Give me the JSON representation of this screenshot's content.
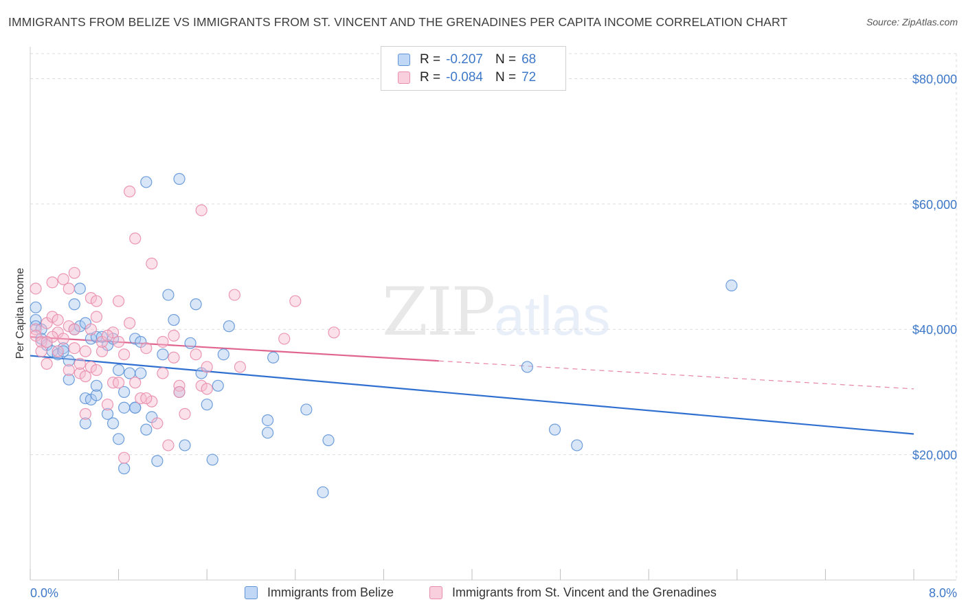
{
  "title": "IMMIGRANTS FROM BELIZE VS IMMIGRANTS FROM ST. VINCENT AND THE GRENADINES PER CAPITA INCOME CORRELATION CHART",
  "source": "Source: ZipAtlas.com",
  "watermark": {
    "zip": "ZIP",
    "atlas": "atlas"
  },
  "legend": {
    "r_label": "R =",
    "n_label": "N =",
    "rows": [
      {
        "r": "-0.207",
        "n": "68"
      },
      {
        "r": "-0.084",
        "n": "72"
      }
    ]
  },
  "colors": {
    "blue_fill": "#a9c8f0",
    "blue_stroke": "#5f93d6",
    "blue_line": "#2f6fd0",
    "pink_fill": "#f6bcd0",
    "pink_stroke": "#e98cab",
    "pink_line": "#e0648f",
    "axis_text": "#3e78c8"
  },
  "chart_data": {
    "type": "scatter",
    "title": "IMMIGRANTS FROM BELIZE VS IMMIGRANTS FROM ST. VINCENT AND THE GRENADINES PER CAPITA INCOME CORRELATION CHART",
    "xlabel": "",
    "ylabel": "Per Capita Income",
    "xlim": [
      0,
      8
    ],
    "ylim": [
      0,
      84000
    ],
    "x_tick_labels": [
      "0.0%",
      "8.0%"
    ],
    "y_ticks": [
      20000,
      40000,
      60000,
      80000
    ],
    "y_tick_labels": [
      "$20,000",
      "$40,000",
      "$60,000",
      "$80,000"
    ],
    "grid": true,
    "series": [
      {
        "name": "Immigrants from Belize",
        "r": -0.207,
        "n": 68,
        "trend": {
          "x0": 0.0,
          "y0": 35800,
          "x1": 8.0,
          "y1": 23300,
          "dashed_from": null
        },
        "points": [
          [
            0.05,
            43500
          ],
          [
            0.05,
            41500
          ],
          [
            0.05,
            40500
          ],
          [
            0.1,
            40000
          ],
          [
            0.1,
            38500
          ],
          [
            0.15,
            37500
          ],
          [
            0.2,
            36500
          ],
          [
            0.25,
            36000
          ],
          [
            0.3,
            37000
          ],
          [
            0.35,
            35000
          ],
          [
            0.35,
            32000
          ],
          [
            0.4,
            40000
          ],
          [
            0.45,
            40500
          ],
          [
            0.5,
            41000
          ],
          [
            0.4,
            44000
          ],
          [
            0.45,
            46500
          ],
          [
            0.55,
            38500
          ],
          [
            0.6,
            38800
          ],
          [
            0.5,
            29000
          ],
          [
            0.55,
            28800
          ],
          [
            0.6,
            29500
          ],
          [
            0.5,
            25000
          ],
          [
            0.6,
            31000
          ],
          [
            0.7,
            37500
          ],
          [
            0.75,
            38500
          ],
          [
            0.8,
            33500
          ],
          [
            0.85,
            30000
          ],
          [
            0.7,
            26500
          ],
          [
            0.75,
            25000
          ],
          [
            0.85,
            27500
          ],
          [
            0.95,
            27500
          ],
          [
            0.9,
            33000
          ],
          [
            1.0,
            33000
          ],
          [
            1.05,
            24000
          ],
          [
            1.1,
            26000
          ],
          [
            1.15,
            19000
          ],
          [
            0.8,
            22500
          ],
          [
            0.85,
            17800
          ],
          [
            0.95,
            38500
          ],
          [
            1.0,
            38000
          ],
          [
            1.2,
            36000
          ],
          [
            1.25,
            45500
          ],
          [
            1.3,
            41500
          ],
          [
            1.35,
            30000
          ],
          [
            1.4,
            21500
          ],
          [
            1.45,
            37800
          ],
          [
            1.5,
            44000
          ],
          [
            1.55,
            33000
          ],
          [
            1.6,
            28000
          ],
          [
            1.65,
            19200
          ],
          [
            1.7,
            31000
          ],
          [
            1.75,
            36000
          ],
          [
            1.8,
            40500
          ],
          [
            2.15,
            25500
          ],
          [
            2.15,
            23500
          ],
          [
            2.2,
            35500
          ],
          [
            2.5,
            27200
          ],
          [
            2.7,
            22300
          ],
          [
            2.65,
            14000
          ],
          [
            1.05,
            63500
          ],
          [
            1.35,
            64000
          ],
          [
            4.5,
            34000
          ],
          [
            4.75,
            24000
          ],
          [
            4.95,
            21500
          ],
          [
            6.35,
            47000
          ],
          [
            0.3,
            36500
          ],
          [
            0.65,
            38800
          ],
          [
            0.95,
            27500
          ]
        ]
      },
      {
        "name": "Immigrants from St. Vincent and the Grenadines",
        "r": -0.084,
        "n": 72,
        "trend": {
          "x0": 0.0,
          "y0": 38800,
          "x1": 8.0,
          "y1": 30500,
          "dashed_from": 3.7
        },
        "points": [
          [
            0.05,
            46500
          ],
          [
            0.05,
            40000
          ],
          [
            0.05,
            39000
          ],
          [
            0.1,
            38000
          ],
          [
            0.1,
            36500
          ],
          [
            0.15,
            41000
          ],
          [
            0.15,
            34500
          ],
          [
            0.2,
            47500
          ],
          [
            0.2,
            42000
          ],
          [
            0.25,
            39500
          ],
          [
            0.25,
            36500
          ],
          [
            0.3,
            48000
          ],
          [
            0.3,
            38500
          ],
          [
            0.35,
            46500
          ],
          [
            0.35,
            40500
          ],
          [
            0.4,
            49000
          ],
          [
            0.4,
            37000
          ],
          [
            0.45,
            33000
          ],
          [
            0.5,
            26500
          ],
          [
            0.5,
            32500
          ],
          [
            0.55,
            34000
          ],
          [
            0.6,
            33500
          ],
          [
            0.65,
            36500
          ],
          [
            0.55,
            40000
          ],
          [
            0.6,
            42000
          ],
          [
            0.55,
            45000
          ],
          [
            0.6,
            44500
          ],
          [
            0.65,
            38000
          ],
          [
            0.7,
            28000
          ],
          [
            0.75,
            31500
          ],
          [
            0.75,
            39500
          ],
          [
            0.8,
            44500
          ],
          [
            0.8,
            38000
          ],
          [
            0.85,
            36000
          ],
          [
            0.9,
            41000
          ],
          [
            0.85,
            19500
          ],
          [
            0.95,
            31500
          ],
          [
            1.0,
            29000
          ],
          [
            1.05,
            37000
          ],
          [
            1.1,
            28500
          ],
          [
            1.15,
            25000
          ],
          [
            1.2,
            38000
          ],
          [
            1.25,
            21500
          ],
          [
            1.3,
            35500
          ],
          [
            1.3,
            39000
          ],
          [
            1.35,
            31000
          ],
          [
            1.35,
            30000
          ],
          [
            1.4,
            26500
          ],
          [
            1.5,
            36000
          ],
          [
            1.55,
            31000
          ],
          [
            1.6,
            34000
          ],
          [
            1.85,
            45500
          ],
          [
            1.9,
            34000
          ],
          [
            2.3,
            38500
          ],
          [
            2.4,
            44500
          ],
          [
            2.75,
            39500
          ],
          [
            0.9,
            62000
          ],
          [
            0.95,
            54500
          ],
          [
            1.1,
            50500
          ],
          [
            1.55,
            59000
          ],
          [
            0.2,
            38800
          ],
          [
            0.35,
            33500
          ],
          [
            0.45,
            34500
          ],
          [
            0.7,
            39000
          ],
          [
            0.5,
            36500
          ],
          [
            1.05,
            29000
          ],
          [
            0.25,
            41500
          ],
          [
            0.4,
            40000
          ],
          [
            0.15,
            38000
          ],
          [
            1.2,
            33000
          ],
          [
            0.8,
            31500
          ],
          [
            1.6,
            30500
          ]
        ]
      }
    ]
  },
  "bottom_legend": [
    {
      "label": "Immigrants from Belize"
    },
    {
      "label": "Immigrants from St. Vincent and the Grenadines"
    }
  ]
}
